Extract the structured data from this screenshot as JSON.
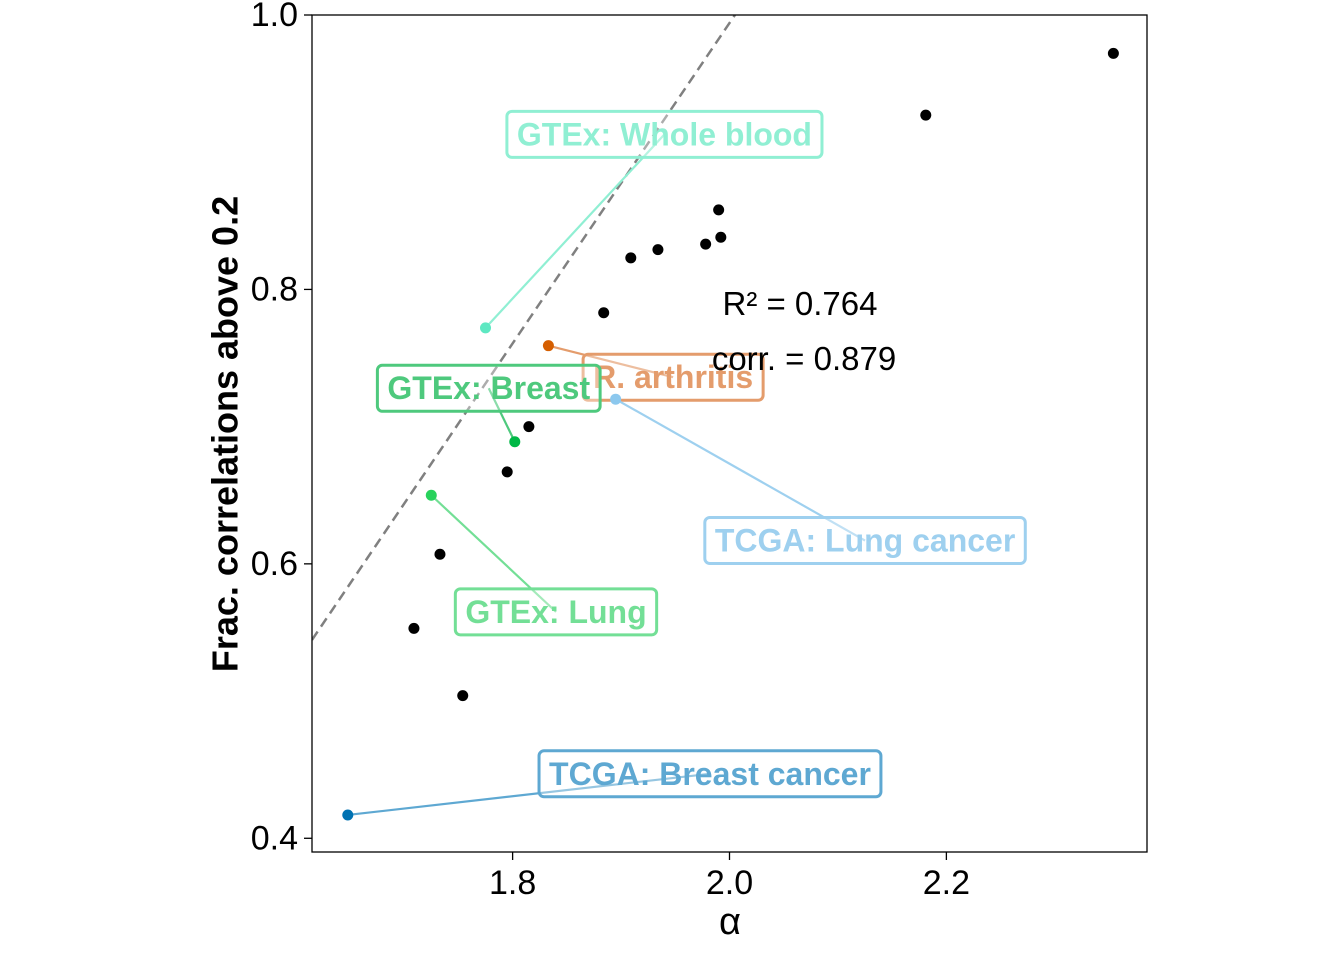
{
  "chart_data": {
    "type": "scatter",
    "xlabel": "α",
    "ylabel": "Frac. correlations above 0.2",
    "xlim": [
      1.615,
      2.385
    ],
    "ylim": [
      0.39,
      1.0
    ],
    "xticks": [
      1.8,
      2.0,
      2.2
    ],
    "xtick_labels": [
      "1.8",
      "2.0",
      "2.2"
    ],
    "yticks": [
      0.4,
      0.6,
      0.8,
      1.0
    ],
    "ytick_labels": [
      "0.4",
      "0.6",
      "0.8",
      "1.0"
    ],
    "grid": false,
    "fit_line": {
      "style": "dashed",
      "color": "#808080",
      "x": [
        1.615,
        2.005
      ],
      "y": [
        0.5446,
        1.0
      ]
    },
    "stats": {
      "r2": "R² = 0.764",
      "corr": "corr. = 0.879"
    },
    "points": [
      {
        "x": 1.709,
        "y": 0.553,
        "color": "#000000"
      },
      {
        "x": 1.733,
        "y": 0.607,
        "color": "#000000"
      },
      {
        "x": 1.754,
        "y": 0.504,
        "color": "#000000"
      },
      {
        "x": 1.795,
        "y": 0.667,
        "color": "#000000"
      },
      {
        "x": 1.815,
        "y": 0.7,
        "color": "#000000"
      },
      {
        "x": 1.884,
        "y": 0.783,
        "color": "#000000"
      },
      {
        "x": 1.909,
        "y": 0.823,
        "color": "#000000"
      },
      {
        "x": 1.934,
        "y": 0.829,
        "color": "#000000"
      },
      {
        "x": 1.978,
        "y": 0.833,
        "color": "#000000"
      },
      {
        "x": 1.99,
        "y": 0.858,
        "color": "#000000"
      },
      {
        "x": 1.992,
        "y": 0.838,
        "color": "#000000"
      },
      {
        "x": 2.181,
        "y": 0.927,
        "color": "#000000"
      },
      {
        "x": 2.354,
        "y": 0.972,
        "color": "#000000"
      }
    ],
    "labeled_points": [
      {
        "name": "GTEx: Whole blood",
        "x": 1.775,
        "y": 0.772,
        "color": "#5ee8c2",
        "label_color": "#90efd3",
        "anchor_x": 1.94,
        "anchor_y": 0.913
      },
      {
        "name": "R. arthritis",
        "x": 1.833,
        "y": 0.759,
        "color": "#d55e00",
        "label_color": "#e49c6c",
        "anchor_x": 1.948,
        "anchor_y": 0.736
      },
      {
        "name": "GTEx: Breast",
        "x": 1.802,
        "y": 0.689,
        "color": "#00b846",
        "label_color": "#4ec97d",
        "anchor_x": 1.778,
        "anchor_y": 0.728
      },
      {
        "name": "TCGA: Lung cancer",
        "x": 1.895,
        "y": 0.72,
        "color": "#8cc8ee",
        "label_color": "#9ed0ef",
        "anchor_x": 2.125,
        "anchor_y": 0.617
      },
      {
        "name": "GTEx: Lung",
        "x": 1.725,
        "y": 0.65,
        "color": "#28d25c",
        "label_color": "#73df96",
        "anchor_x": 1.84,
        "anchor_y": 0.565
      },
      {
        "name": "TCGA: Breast cancer",
        "x": 1.648,
        "y": 0.417,
        "color": "#0072b2",
        "label_color": "#5ea8d2",
        "anchor_x": 1.982,
        "anchor_y": 0.447
      }
    ]
  }
}
